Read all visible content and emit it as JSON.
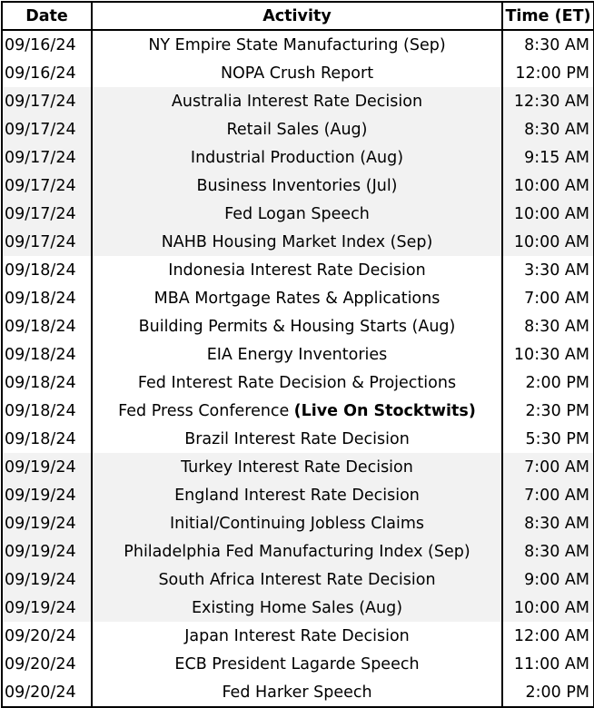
{
  "table": {
    "headers": [
      "Date",
      "Activity",
      "Time (ET)"
    ],
    "rows": [
      {
        "date": "09/16/24",
        "activity": "NY Empire State Manufacturing (Sep)",
        "time": "8:30 AM"
      },
      {
        "date": "09/16/24",
        "activity": "NOPA Crush Report",
        "time": "12:00 PM"
      },
      {
        "date": "09/17/24",
        "activity": "Australia Interest Rate Decision",
        "time": "12:30 AM"
      },
      {
        "date": "09/17/24",
        "activity": "Retail Sales (Aug)",
        "time": "8:30 AM"
      },
      {
        "date": "09/17/24",
        "activity": "Industrial Production (Aug)",
        "time": "9:15 AM"
      },
      {
        "date": "09/17/24",
        "activity": "Business Inventories (Jul)",
        "time": "10:00 AM"
      },
      {
        "date": "09/17/24",
        "activity": "Fed Logan Speech",
        "time": "10:00 AM"
      },
      {
        "date": "09/17/24",
        "activity": "NAHB Housing Market Index (Sep)",
        "time": "10:00 AM"
      },
      {
        "date": "09/18/24",
        "activity": "Indonesia Interest Rate Decision",
        "time": "3:30 AM"
      },
      {
        "date": "09/18/24",
        "activity": "MBA Mortgage Rates & Applications",
        "time": "7:00 AM"
      },
      {
        "date": "09/18/24",
        "activity": "Building Permits & Housing Starts (Aug)",
        "time": "8:30 AM"
      },
      {
        "date": "09/18/24",
        "activity": "EIA Energy Inventories",
        "time": "10:30 AM"
      },
      {
        "date": "09/18/24",
        "activity": "Fed Interest Rate Decision & Projections",
        "time": "2:00 PM"
      },
      {
        "date": "09/18/24",
        "activity": "Fed Press Conference",
        "activity_bold": "(Live On Stocktwits)",
        "time": "2:30 PM"
      },
      {
        "date": "09/18/24",
        "activity": "Brazil Interest Rate Decision",
        "time": "5:30 PM"
      },
      {
        "date": "09/19/24",
        "activity": "Turkey Interest Rate Decision",
        "time": "7:00 AM"
      },
      {
        "date": "09/19/24",
        "activity": "England Interest Rate Decision",
        "time": "7:00 AM"
      },
      {
        "date": "09/19/24",
        "activity": "Initial/Continuing Jobless Claims",
        "time": "8:30 AM"
      },
      {
        "date": "09/19/24",
        "activity": "Philadelphia Fed Manufacturing Index (Sep)",
        "time": "8:30 AM"
      },
      {
        "date": "09/19/24",
        "activity": "South Africa Interest Rate Decision",
        "time": "9:00 AM"
      },
      {
        "date": "09/19/24",
        "activity": "Existing Home Sales (Aug)",
        "time": "10:00 AM"
      },
      {
        "date": "09/20/24",
        "activity": "Japan Interest Rate Decision",
        "time": "12:00 AM"
      },
      {
        "date": "09/20/24",
        "activity": "ECB President Lagarde Speech",
        "time": "11:00 AM"
      },
      {
        "date": "09/20/24",
        "activity": "Fed Harker Speech",
        "time": "2:00 PM"
      }
    ]
  }
}
